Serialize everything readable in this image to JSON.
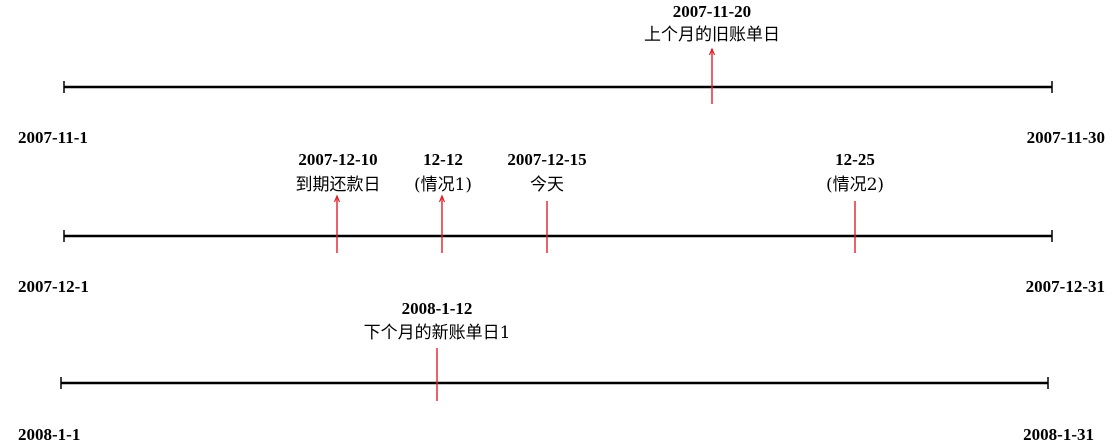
{
  "timelines": [
    {
      "start_label": "2007-11-1",
      "end_label": "2007-11-30",
      "events": [
        {
          "date": "2007-11-20",
          "text": "上个月的旧账单日",
          "arrow": true
        }
      ]
    },
    {
      "start_label": "2007-12-1",
      "end_label": "2007-12-31",
      "events": [
        {
          "date": "2007-12-10",
          "text": "到期还款日",
          "arrow": true
        },
        {
          "date": "12-12",
          "text": "(情况1)",
          "arrow": true
        },
        {
          "date": "2007-12-15",
          "text": "今天",
          "arrow": false
        },
        {
          "date": "12-25",
          "text": "(情况2)",
          "arrow": false
        }
      ]
    },
    {
      "start_label": "2008-1-1",
      "end_label": "2008-1-31",
      "events": [
        {
          "date": "2008-1-12",
          "text": "下个月的新账单日1",
          "arrow": false
        }
      ]
    }
  ],
  "colors": {
    "axis": "#000000",
    "marker": "#e0202a",
    "text": "#000000"
  }
}
